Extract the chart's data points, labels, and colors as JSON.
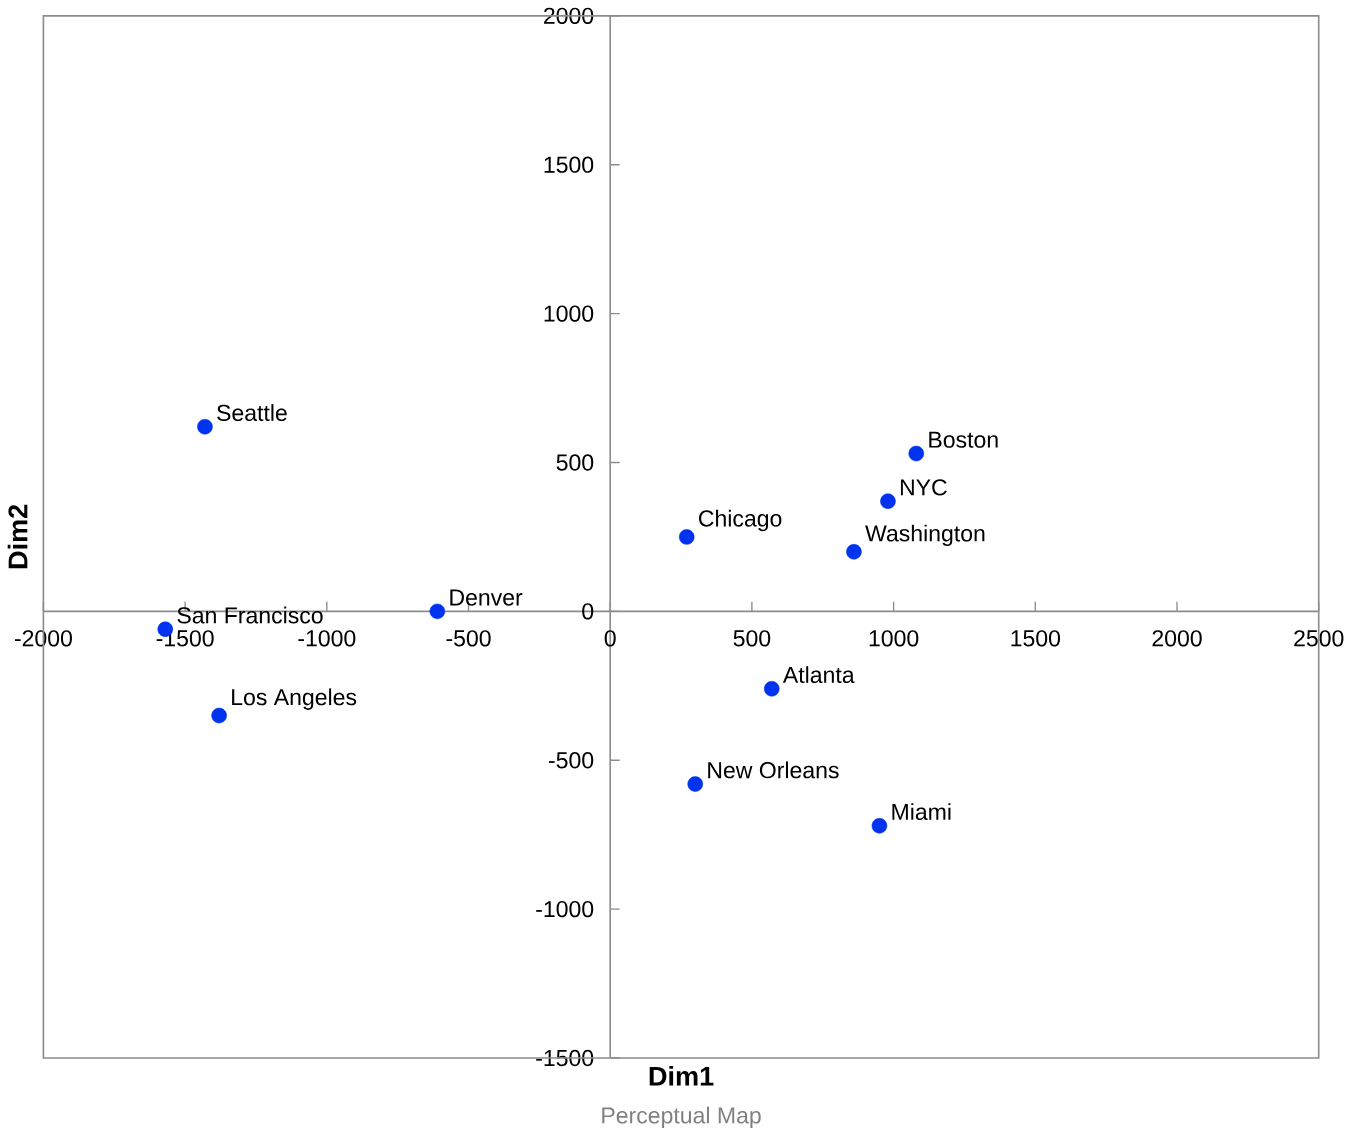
{
  "chart_data": {
    "type": "scatter",
    "xlabel": "Dim1",
    "ylabel": "Dim2",
    "color": "#0033ee",
    "marker": "circle",
    "x": [
      -1430,
      -1570,
      -1380,
      -610,
      270,
      1080,
      980,
      860,
      570,
      300,
      950
    ],
    "values": [
      620,
      -60,
      -350,
      0,
      250,
      530,
      370,
      200,
      -260,
      -580,
      -720
    ],
    "xlim": [
      -2000,
      2500
    ],
    "ylim": [
      -1500,
      2000
    ],
    "xticks": [
      -2000,
      -1500,
      -1000,
      -500,
      0,
      500,
      1000,
      1500,
      2000,
      2500
    ],
    "yticks": [
      -1500,
      -1000,
      -500,
      0,
      500,
      1000,
      1500,
      2000
    ],
    "annotations": [
      {
        "text": "Seattle",
        "x": -1430,
        "y": 620
      },
      {
        "text": "San Francisco",
        "x": -1570,
        "y": -60
      },
      {
        "text": "Los Angeles",
        "x": -1380,
        "y": -350
      },
      {
        "text": "Denver",
        "x": -610,
        "y": 0
      },
      {
        "text": "Chicago",
        "x": 270,
        "y": 250
      },
      {
        "text": "Boston",
        "x": 1080,
        "y": 530
      },
      {
        "text": "NYC",
        "x": 980,
        "y": 370
      },
      {
        "text": "Washington",
        "x": 860,
        "y": 200
      },
      {
        "text": "Atlanta",
        "x": 570,
        "y": -260
      },
      {
        "text": "New Orleans",
        "x": 300,
        "y": -580
      },
      {
        "text": "Miami",
        "x": 950,
        "y": -720
      },
      "Perceptual Map"
    ]
  }
}
